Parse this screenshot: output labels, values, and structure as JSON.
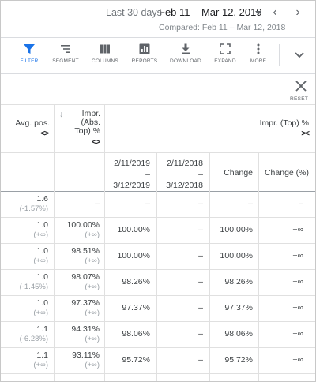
{
  "header": {
    "range_label": "Last 30 days",
    "range_value": "Feb 11 – Mar 12, 2019",
    "compared": "Compared: Feb 11 – Mar 12, 2018"
  },
  "toolbar": {
    "items": [
      {
        "label": "FILTER",
        "icon": "filter-icon"
      },
      {
        "label": "SEGMENT",
        "icon": "segment-icon"
      },
      {
        "label": "COLUMNS",
        "icon": "columns-icon"
      },
      {
        "label": "REPORTS",
        "icon": "reports-icon"
      },
      {
        "label": "DOWNLOAD",
        "icon": "download-icon"
      },
      {
        "label": "EXPAND",
        "icon": "expand-icon"
      },
      {
        "label": "MORE",
        "icon": "more-icon"
      }
    ],
    "accent": "#1a73e8"
  },
  "reset": {
    "label": "RESET"
  },
  "table": {
    "col_avg_pos": "Avg. pos.",
    "col_impr_abs": [
      "Impr.",
      "(Abs.",
      "Top) %"
    ],
    "col_impr_top": "Impr. (Top) %",
    "sort_arrow": "↓",
    "arrows": "<>",
    "arrows_top": "><",
    "sub_period1": [
      "2/11/2019",
      "–",
      "3/12/2019"
    ],
    "sub_period2": [
      "2/11/2018",
      "–",
      "3/12/2018"
    ],
    "sub_change": "Change",
    "sub_change_pct": "Change (%)",
    "total": {
      "avg": "1.6",
      "avg_chg": "(-1.57%)",
      "abs": "–",
      "p1": "–",
      "p2": "–",
      "chg": "–",
      "chg_pct": "–"
    },
    "rows": [
      {
        "avg": "1.0",
        "avg_chg": "(+∞)",
        "abs": "100.00%",
        "abs_chg": "(+∞)",
        "p1": "100.00%",
        "p2": "–",
        "chg": "100.00%",
        "chg_pct": "+∞"
      },
      {
        "avg": "1.0",
        "avg_chg": "(+∞)",
        "abs": "98.51%",
        "abs_chg": "(+∞)",
        "p1": "100.00%",
        "p2": "–",
        "chg": "100.00%",
        "chg_pct": "+∞"
      },
      {
        "avg": "1.0",
        "avg_chg": "(-1.45%)",
        "abs": "98.07%",
        "abs_chg": "(+∞)",
        "p1": "98.26%",
        "p2": "–",
        "chg": "98.26%",
        "chg_pct": "+∞"
      },
      {
        "avg": "1.0",
        "avg_chg": "(+∞)",
        "abs": "97.37%",
        "abs_chg": "(+∞)",
        "p1": "97.37%",
        "p2": "–",
        "chg": "97.37%",
        "chg_pct": "+∞"
      },
      {
        "avg": "1.1",
        "avg_chg": "(-6.28%)",
        "abs": "94.31%",
        "abs_chg": "(+∞)",
        "p1": "98.06%",
        "p2": "–",
        "chg": "98.06%",
        "chg_pct": "+∞"
      },
      {
        "avg": "1.1",
        "avg_chg": "(+∞)",
        "abs": "93.11%",
        "abs_chg": "(+∞)",
        "p1": "95.72%",
        "p2": "–",
        "chg": "95.72%",
        "chg_pct": "+∞"
      }
    ]
  }
}
